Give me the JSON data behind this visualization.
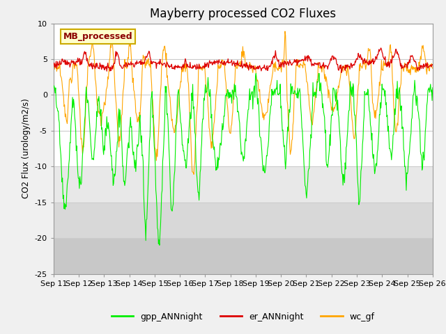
{
  "title": "Mayberry processed CO2 Fluxes",
  "ylabel": "CO2 Flux (urology/m2/s)",
  "ylim": [
    -25,
    10
  ],
  "yticks": [
    -25,
    -20,
    -15,
    -10,
    -5,
    0,
    5,
    10
  ],
  "xtick_labels": [
    "Sep 11",
    "Sep 12",
    "Sep 13",
    "Sep 14",
    "Sep 15",
    "Sep 16",
    "Sep 17",
    "Sep 18",
    "Sep 19",
    "Sep 20",
    "Sep 21",
    "Sep 22",
    "Sep 23",
    "Sep 24",
    "Sep 25",
    "Sep 26"
  ],
  "color_gpp": "#00ee00",
  "color_er": "#dd0000",
  "color_wc": "#ffa500",
  "label_gpp": "gpp_ANNnight",
  "label_er": "er_ANNnight",
  "label_wc": "wc_gf",
  "inset_label": "MB_processed",
  "fig_bg": "#f0f0f0",
  "plot_bg": "#ffffff",
  "band_light": "#e8e8e8",
  "band_mid": "#d8d8d8",
  "legend_bg": "#ffffcc",
  "legend_border": "#ccaa00",
  "n_points": 720,
  "seed": 123
}
